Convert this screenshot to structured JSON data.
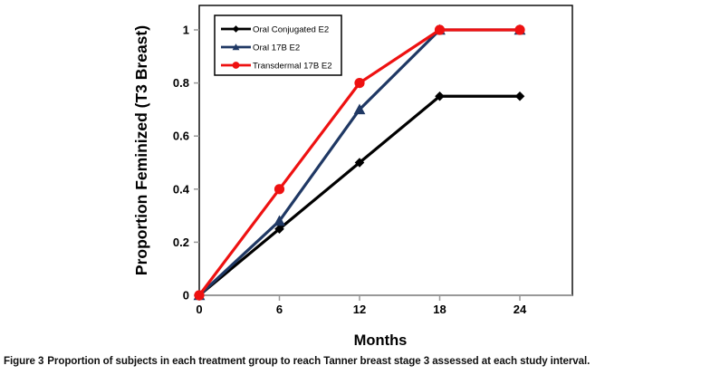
{
  "figure": {
    "caption_prefix": "Figure 3",
    "caption_text": "Proportion of subjects in each treatment group to reach Tanner breast stage 3 assessed at each study interval."
  },
  "chart_data": {
    "type": "line",
    "title": "",
    "xlabel": "Months",
    "ylabel": "Proportion Feminized (T3 Breast)",
    "x": [
      0,
      6,
      12,
      18,
      24
    ],
    "xticks": [
      0,
      6,
      12,
      18,
      24
    ],
    "yticks": [
      0,
      0.2,
      0.4,
      0.6,
      0.8,
      1
    ],
    "xlim": [
      0,
      28
    ],
    "ylim": [
      0,
      1.09
    ],
    "grid": false,
    "legend_position": "top-left-inside",
    "series": [
      {
        "name": "Oral Conjugated E2",
        "color": "#000000",
        "marker": "diamond",
        "values": [
          0,
          0.25,
          0.5,
          0.75,
          0.75
        ]
      },
      {
        "name": "Oral 17B E2",
        "color": "#1F3864",
        "marker": "triangle",
        "values": [
          0,
          0.28,
          0.7,
          1,
          1
        ]
      },
      {
        "name": "Transdermal 17B E2",
        "color": "#EE1111",
        "marker": "circle",
        "values": [
          0,
          0.4,
          0.8,
          1,
          1
        ]
      }
    ],
    "style": {
      "plot_border_color": "#000000",
      "axis_line_color": "#999999",
      "tick_color": "#999999",
      "background": "#FFFFFF",
      "legend_border_color": "#000000"
    }
  }
}
